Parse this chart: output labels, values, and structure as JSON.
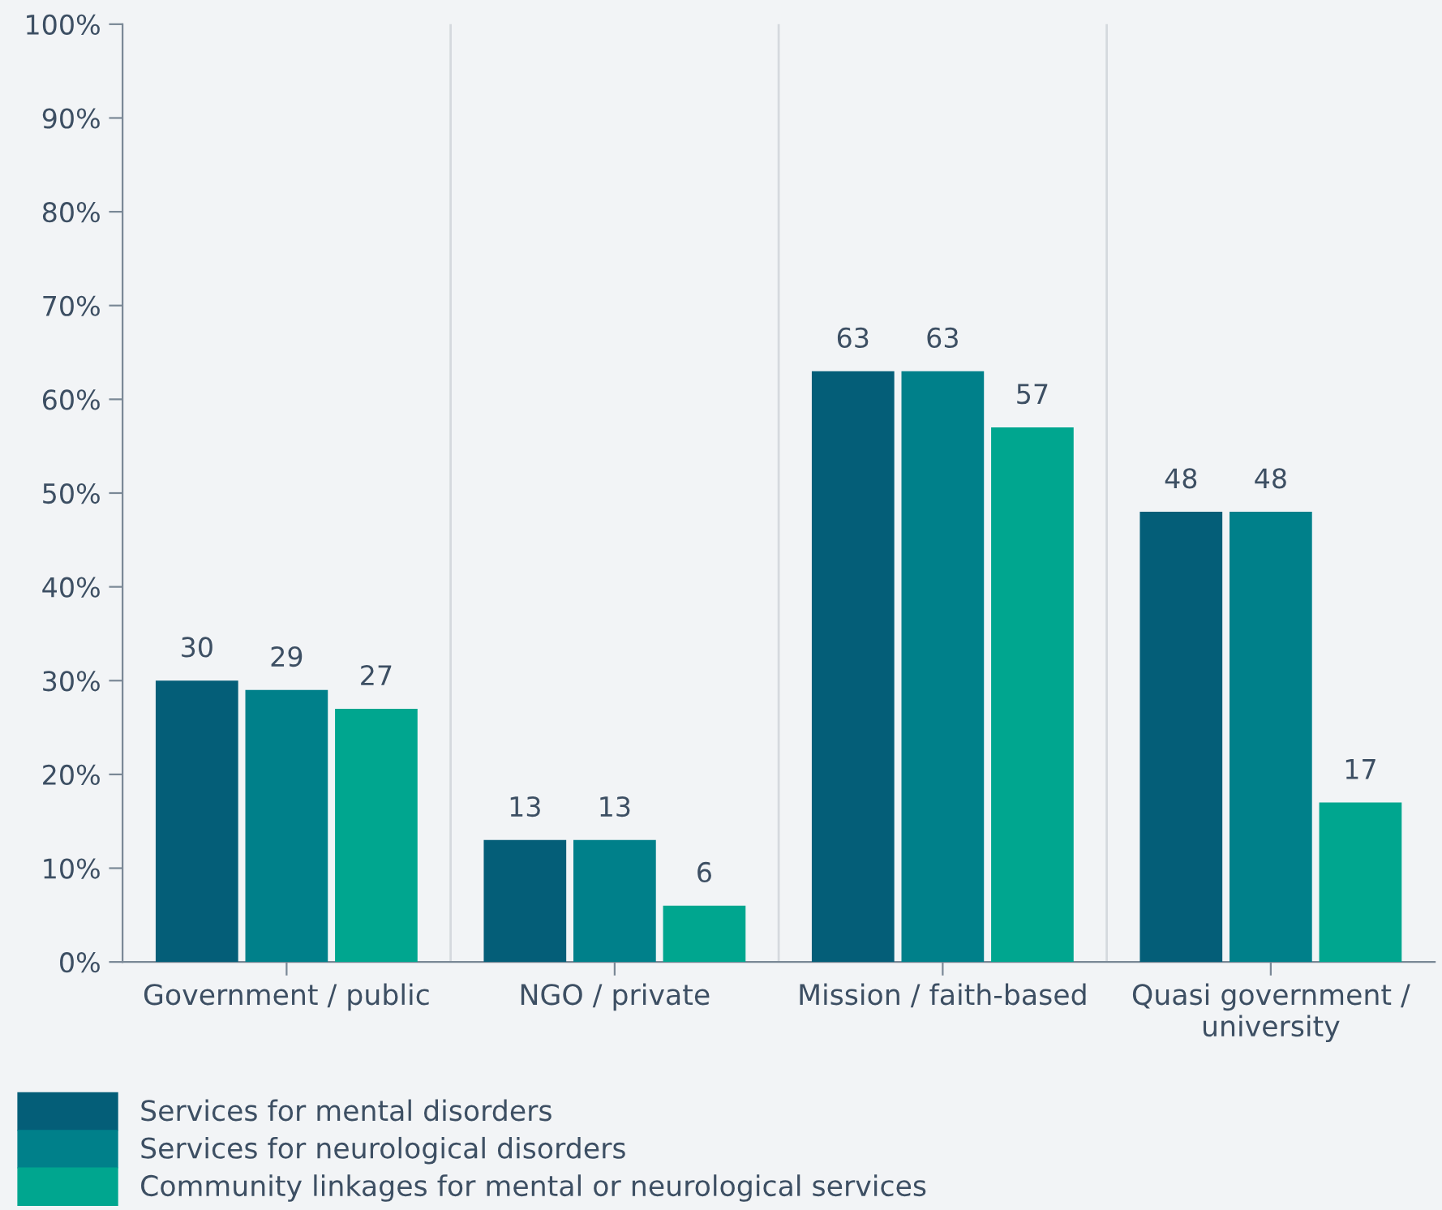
{
  "chart_data": {
    "type": "bar",
    "categories": [
      "Government / public",
      "NGO / private",
      "Mission / faith-based",
      "Quasi government /\nuniversity"
    ],
    "series": [
      {
        "name": "Services for mental disorders",
        "color": "#045e78",
        "values": [
          30,
          13,
          63,
          48
        ]
      },
      {
        "name": "Services for neurological disorders",
        "color": "#00808a",
        "values": [
          29,
          13,
          63,
          48
        ]
      },
      {
        "name": "Community linkages for mental or neurological services",
        "color": "#00a68f",
        "values": [
          27,
          6,
          57,
          17
        ]
      }
    ],
    "ylim": [
      0,
      100
    ],
    "yticks": [
      {
        "value": 0,
        "label": "0%"
      },
      {
        "value": 10,
        "label": "10%"
      },
      {
        "value": 20,
        "label": "20%"
      },
      {
        "value": 30,
        "label": "30%"
      },
      {
        "value": 40,
        "label": "40%"
      },
      {
        "value": 50,
        "label": "50%"
      },
      {
        "value": 60,
        "label": "60%"
      },
      {
        "value": 70,
        "label": "70%"
      },
      {
        "value": 80,
        "label": "80%"
      },
      {
        "value": 90,
        "label": "90%"
      },
      {
        "value": 100,
        "label": "100%"
      }
    ],
    "data_labels": true,
    "grid": "x",
    "legend": "bottom"
  }
}
